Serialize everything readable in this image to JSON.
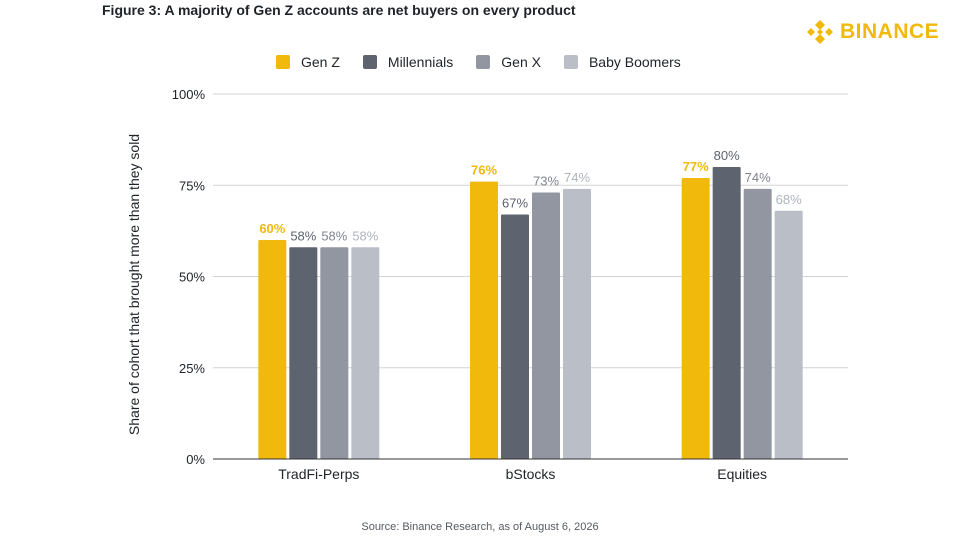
{
  "figure": {
    "title": "Figure 3: A majority of Gen Z accounts are net buyers on every product",
    "source": "Source: Binance Research, as of August 6, 2026"
  },
  "brand": {
    "logo_text": "BINANCE",
    "logo_icon": "binance-diamond-icon",
    "color": "#F0B90B"
  },
  "chart_data": {
    "type": "bar",
    "title": "Figure 3: A majority of Gen Z accounts are net buyers on every product",
    "xlabel": "",
    "ylabel": "Share of cohort that brought more than they sold",
    "categories": [
      "TradFi-Perps",
      "bStocks",
      "Equities"
    ],
    "series": [
      {
        "name": "Gen Z",
        "color": "#F0B90B",
        "label_color": "#F0B90B",
        "values": [
          60,
          76,
          77
        ],
        "labels": [
          "60%",
          "76%",
          "77%"
        ]
      },
      {
        "name": "Millennials",
        "color": "#5E6370",
        "label_color": "#5E6370",
        "values": [
          58,
          67,
          80
        ],
        "labels": [
          "58%",
          "67%",
          "80%"
        ]
      },
      {
        "name": "Gen X",
        "color": "#9296A0",
        "label_color": "#80848e",
        "values": [
          58,
          73,
          74
        ],
        "labels": [
          "58%",
          "73%",
          "74%"
        ]
      },
      {
        "name": "Baby Boomers",
        "color": "#B9BEC7",
        "label_color": "#aeb3bc",
        "values": [
          58,
          74,
          68
        ],
        "labels": [
          "58%",
          "74%",
          "68%"
        ]
      }
    ],
    "ylim": [
      0,
      100
    ],
    "yticks": [
      0,
      25,
      50,
      75,
      100
    ],
    "ytick_labels": [
      "0%",
      "25%",
      "50%",
      "75%",
      "100%"
    ],
    "grid": true,
    "legend_position": "top"
  }
}
